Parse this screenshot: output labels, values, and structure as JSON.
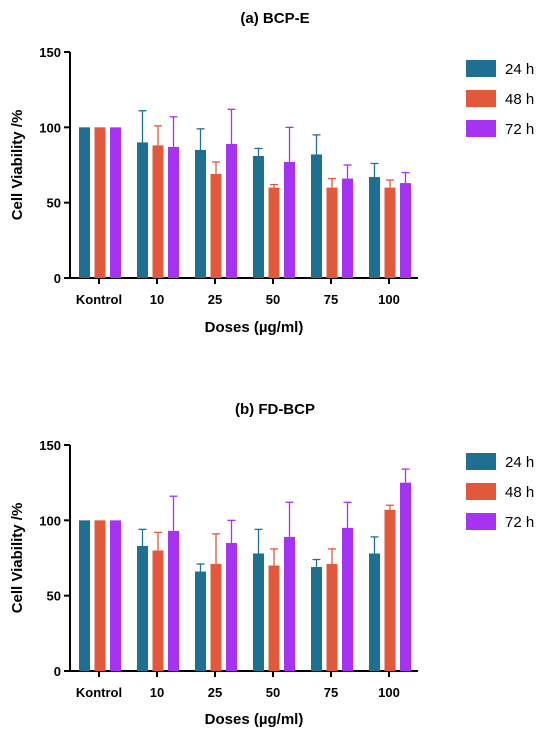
{
  "chart_data": [
    {
      "type": "bar",
      "title": "(a)  BCP-E",
      "xlabel": "Doses  (µg/ml)",
      "ylabel": "Cell Viability /%",
      "ylim": [
        0,
        150
      ],
      "yticks": [
        0,
        50,
        100,
        150
      ],
      "categories": [
        "Kontrol",
        "10",
        "25",
        "50",
        "75",
        "100"
      ],
      "legend_position": "right",
      "series": [
        {
          "name": "24 h",
          "color": "#1f6f93",
          "values": [
            100,
            90,
            85,
            81,
            82,
            67
          ],
          "errors": [
            0,
            21,
            14,
            5,
            13,
            9
          ]
        },
        {
          "name": "48 h",
          "color": "#e2583a",
          "values": [
            100,
            88,
            69,
            60,
            60,
            60
          ],
          "errors": [
            0,
            13,
            8,
            2,
            6,
            5
          ]
        },
        {
          "name": "72 h",
          "color": "#a633f2",
          "values": [
            100,
            87,
            89,
            77,
            66,
            63
          ],
          "errors": [
            0,
            20,
            23,
            23,
            9,
            7
          ]
        }
      ]
    },
    {
      "type": "bar",
      "title": "(b)  FD-BCP",
      "xlabel": "Doses  (µg/ml)",
      "ylabel": "Cell Viability /%",
      "ylim": [
        0,
        150
      ],
      "yticks": [
        0,
        50,
        100,
        150
      ],
      "categories": [
        "Kontrol",
        "10",
        "25",
        "50",
        "75",
        "100"
      ],
      "legend_position": "right",
      "series": [
        {
          "name": "24 h",
          "color": "#1f6f93",
          "values": [
            100,
            83,
            66,
            78,
            69,
            78
          ],
          "errors": [
            0,
            11,
            5,
            16,
            5,
            11
          ]
        },
        {
          "name": "48 h",
          "color": "#e2583a",
          "values": [
            100,
            80,
            71,
            70,
            71,
            107
          ],
          "errors": [
            0,
            12,
            20,
            11,
            10,
            3
          ]
        },
        {
          "name": "72 h",
          "color": "#a633f2",
          "values": [
            100,
            93,
            85,
            89,
            95,
            125
          ],
          "errors": [
            0,
            23,
            15,
            23,
            17,
            9
          ]
        }
      ]
    }
  ]
}
